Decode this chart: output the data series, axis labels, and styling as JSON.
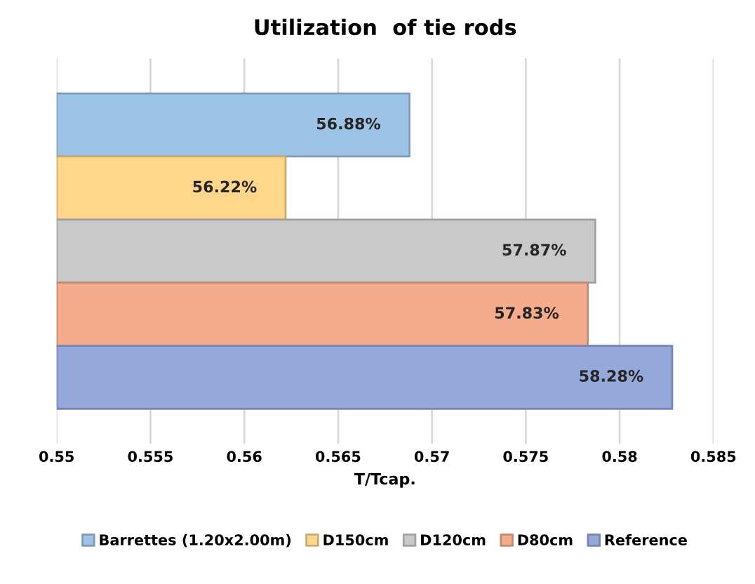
{
  "chart_data": {
    "type": "bar",
    "orientation": "horizontal",
    "title": "Utilization  of tie rods",
    "xlabel": "T/Tcap.",
    "categories": [
      null
    ],
    "series": [
      {
        "name": "Barrettes (1.20x2.00m)",
        "color": "#9dc3e6",
        "values": [
          0.5688
        ],
        "value_labels": [
          "56.88%"
        ]
      },
      {
        "name": "D150cm",
        "color": "#ffd68a",
        "values": [
          0.5622
        ],
        "value_labels": [
          "56.22%"
        ]
      },
      {
        "name": "D120cm",
        "color": "#c9c9c9",
        "values": [
          0.5787
        ],
        "value_labels": [
          "57.87%"
        ]
      },
      {
        "name": "D80cm",
        "color": "#f5ac8c",
        "values": [
          0.5783
        ],
        "value_labels": [
          "57.83%"
        ]
      },
      {
        "name": "Reference",
        "color": "#94a8db",
        "values": [
          0.5828
        ],
        "value_labels": [
          "58.28%"
        ]
      }
    ],
    "xlim": [
      0.55,
      0.585
    ],
    "xticks": [
      0.55,
      0.555,
      0.56,
      0.565,
      0.57,
      0.575,
      0.58,
      0.585
    ],
    "grid": "x",
    "legend": "bottom",
    "tick_labels": "x"
  }
}
